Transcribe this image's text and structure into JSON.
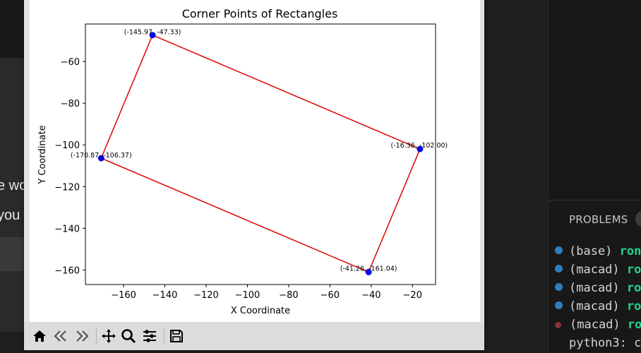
{
  "background": {
    "left_line_1": "e wo",
    "left_line_2": "you"
  },
  "terminal": {
    "panel_tab": "PROBLEMS",
    "lines": [
      {
        "prefix": "(base)",
        "suffix": "ron",
        "status": "ok"
      },
      {
        "prefix": "(macad)",
        "suffix": "ro",
        "status": "ok"
      },
      {
        "prefix": "(macad)",
        "suffix": "ro",
        "status": "ok"
      },
      {
        "prefix": "(macad)",
        "suffix": "ro",
        "status": "ok"
      },
      {
        "prefix": "(macad)",
        "suffix": "ro",
        "status": "error"
      }
    ],
    "last_line": "python3: c"
  },
  "figure": {
    "toolbar": [
      {
        "name": "home-icon",
        "symbol": "⌂"
      },
      {
        "name": "back-icon",
        "symbol": "⇐"
      },
      {
        "name": "forward-icon",
        "symbol": "⇒"
      },
      {
        "name": "pan-icon",
        "symbol": "✥"
      },
      {
        "name": "zoom-icon",
        "symbol": "⚲"
      },
      {
        "name": "configure-subplots-icon",
        "symbol": "☷"
      },
      {
        "name": "save-icon",
        "symbol": "💾"
      }
    ]
  },
  "chart_data": {
    "type": "line",
    "title": "Corner Points of Rectangles",
    "xlabel": "X Coordinate",
    "ylabel": "Y Coordinate",
    "xlim": [
      -178.5,
      -8.8
    ],
    "ylim": [
      -167.0,
      -42.0
    ],
    "xticks": [
      -160,
      -140,
      -120,
      -100,
      -80,
      -60,
      -40,
      -20
    ],
    "yticks": [
      -60,
      -80,
      -100,
      -120,
      -140,
      -160
    ],
    "xtick_labels": [
      "−160",
      "−140",
      "−120",
      "−100",
      "−80",
      "−60",
      "−40",
      "−20"
    ],
    "ytick_labels": [
      "−60",
      "−80",
      "−100",
      "−120",
      "−140",
      "−160"
    ],
    "grid": false,
    "line_color": "#e01010",
    "point_color": "#0a0ae6",
    "points": [
      {
        "x": -145.97,
        "y": -47.33,
        "label": "(-145.97, -47.33)",
        "anchor": "end"
      },
      {
        "x": -16.36,
        "y": -102.0,
        "label": "(-16.36, -102.00)",
        "anchor": "middle"
      },
      {
        "x": -41.26,
        "y": -161.04,
        "label": "(-41.26, -161.04)",
        "anchor": "middle"
      },
      {
        "x": -170.87,
        "y": -106.37,
        "label": "(-170.87, -106.37)",
        "anchor": "start"
      }
    ]
  }
}
